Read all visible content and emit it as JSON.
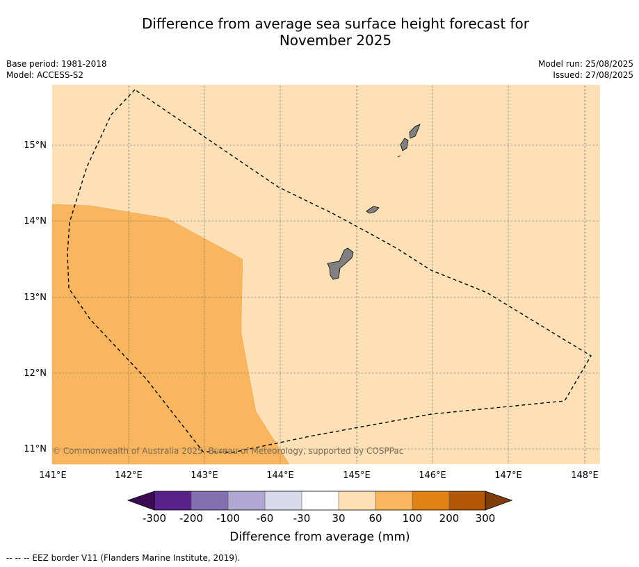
{
  "title_line1": "Difference from average sea surface height forecast for",
  "title_line2": "November 2025",
  "base_period": "Base period: 1981-2018",
  "model": "Model: ACCESS-S2",
  "model_run": "Model run: 25/08/2025",
  "issued": "Issued: 27/08/2025",
  "copyright": "© Commonwealth of Australia 2025, Bureau of Meteorology, supported by COSPPac",
  "footnote": "--  --  -- EEZ border V11 (Flanders Marine Institute, 2019).",
  "map": {
    "lon_labels": [
      "141°E",
      "142°E",
      "143°E",
      "144°E",
      "145°E",
      "146°E",
      "147°E",
      "148°E"
    ],
    "lat_labels": [
      "15°N",
      "14°N",
      "13°N",
      "12°N",
      "11°N"
    ],
    "colors": {
      "background_class": "#fde0b6",
      "anomaly_region": "#f9b65f",
      "land": "#808080",
      "eez_border": "#000000"
    }
  },
  "colorbar": {
    "title": "Difference from average (mm)",
    "labels": [
      "-300",
      "-200",
      "-100",
      "-60",
      "-30",
      "30",
      "60",
      "100",
      "200",
      "300"
    ],
    "colors": [
      "#3b0a55",
      "#59228a",
      "#8270b0",
      "#b0a8d3",
      "#d9d9ec",
      "#ffffff",
      "#fde0b6",
      "#f9b65f",
      "#e08214",
      "#b35806",
      "#7f3b08"
    ]
  }
}
